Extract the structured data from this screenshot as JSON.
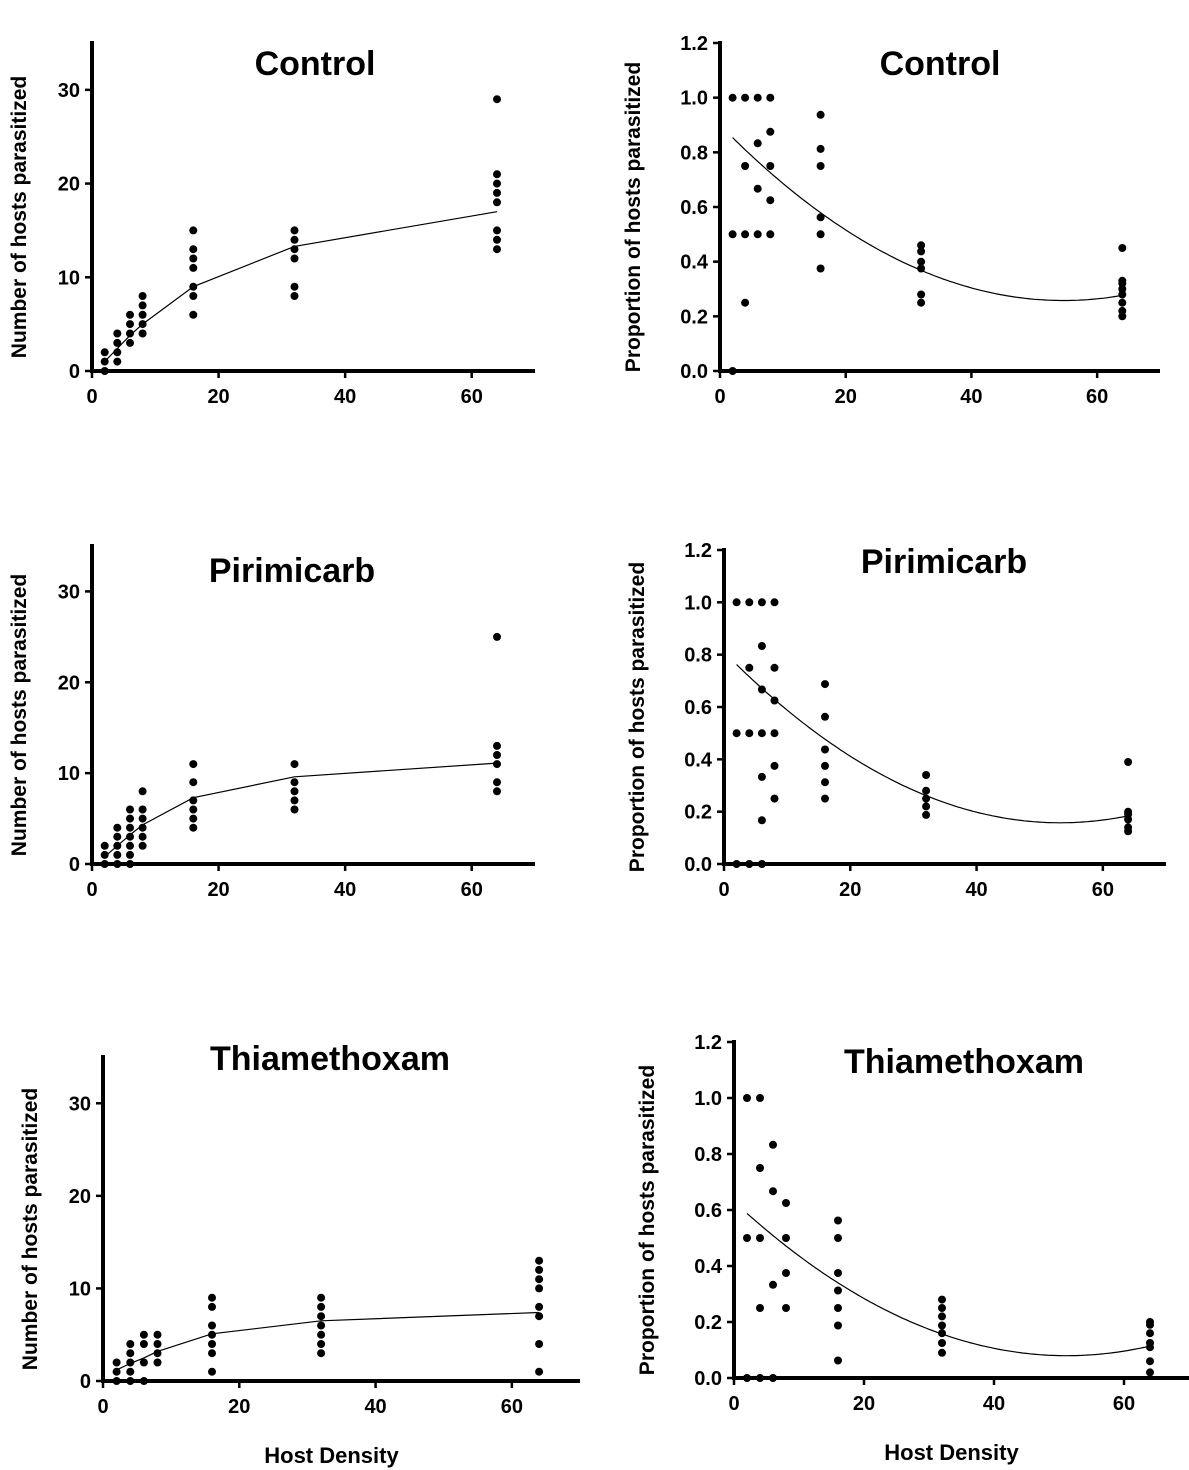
{
  "chart_data": [
    {
      "type": "scatter",
      "title": "Control",
      "xlabel": "",
      "ylabel": "Number of hosts parasitized",
      "xlim": [
        0,
        70
      ],
      "ylim": [
        0,
        35
      ],
      "xticks": [
        0,
        20,
        40,
        60
      ],
      "yticks": [
        0,
        10,
        20,
        30
      ],
      "points": [
        [
          2,
          0
        ],
        [
          2,
          1
        ],
        [
          2,
          2
        ],
        [
          4,
          1
        ],
        [
          4,
          2
        ],
        [
          4,
          3
        ],
        [
          4,
          4
        ],
        [
          6,
          3
        ],
        [
          6,
          4
        ],
        [
          6,
          5
        ],
        [
          6,
          6
        ],
        [
          8,
          4
        ],
        [
          8,
          5
        ],
        [
          8,
          6
        ],
        [
          8,
          7
        ],
        [
          8,
          8
        ],
        [
          16,
          6
        ],
        [
          16,
          8
        ],
        [
          16,
          9
        ],
        [
          16,
          11
        ],
        [
          16,
          12
        ],
        [
          16,
          13
        ],
        [
          16,
          15
        ],
        [
          32,
          8
        ],
        [
          32,
          9
        ],
        [
          32,
          12
        ],
        [
          32,
          13
        ],
        [
          32,
          14
        ],
        [
          32,
          15
        ],
        [
          64,
          13
        ],
        [
          64,
          14
        ],
        [
          64,
          15
        ],
        [
          64,
          18
        ],
        [
          64,
          19
        ],
        [
          64,
          20
        ],
        [
          64,
          21
        ],
        [
          64,
          29
        ]
      ],
      "fit": [
        [
          2,
          1
        ],
        [
          4,
          2.4
        ],
        [
          6,
          3.8
        ],
        [
          8,
          5
        ],
        [
          16,
          9
        ],
        [
          32,
          13.3
        ],
        [
          64,
          17
        ]
      ]
    },
    {
      "type": "scatter",
      "title": "Control",
      "xlabel": "",
      "ylabel": "Proportion of hosts parasitized",
      "xlim": [
        0,
        70
      ],
      "ylim": [
        0,
        1.2
      ],
      "xticks": [
        0,
        20,
        40,
        60
      ],
      "yticks": [
        "0.0",
        "0.2",
        "0.4",
        "0.6",
        "0.8",
        "1.0",
        "1.2"
      ],
      "points": [
        [
          2,
          0
        ],
        [
          2,
          0.5
        ],
        [
          2,
          1.0
        ],
        [
          4,
          0.25
        ],
        [
          4,
          0.5
        ],
        [
          4,
          0.75
        ],
        [
          4,
          1.0
        ],
        [
          6,
          0.5
        ],
        [
          6,
          0.667
        ],
        [
          6,
          0.833
        ],
        [
          6,
          1.0
        ],
        [
          8,
          0.5
        ],
        [
          8,
          0.625
        ],
        [
          8,
          0.75
        ],
        [
          8,
          0.875
        ],
        [
          8,
          1.0
        ],
        [
          16,
          0.375
        ],
        [
          16,
          0.5
        ],
        [
          16,
          0.5625
        ],
        [
          16,
          0.75
        ],
        [
          16,
          0.8125
        ],
        [
          16,
          0.9375
        ],
        [
          32,
          0.25
        ],
        [
          32,
          0.28
        ],
        [
          32,
          0.375
        ],
        [
          32,
          0.4
        ],
        [
          32,
          0.4375
        ],
        [
          32,
          0.46
        ],
        [
          64,
          0.2
        ],
        [
          64,
          0.22
        ],
        [
          64,
          0.25
        ],
        [
          64,
          0.28
        ],
        [
          64,
          0.3
        ],
        [
          64,
          0.32
        ],
        [
          64,
          0.33
        ],
        [
          64,
          0.45
        ]
      ],
      "poly": [
        0.9,
        -0.0235,
        0.000215
      ]
    },
    {
      "type": "scatter",
      "title": "Pirimicarb",
      "xlabel": "",
      "ylabel": "Number of hosts parasitized",
      "xlim": [
        0,
        70
      ],
      "ylim": [
        0,
        35
      ],
      "xticks": [
        0,
        20,
        40,
        60
      ],
      "yticks": [
        0,
        10,
        20,
        30
      ],
      "points": [
        [
          2,
          0
        ],
        [
          2,
          1
        ],
        [
          2,
          2
        ],
        [
          4,
          0
        ],
        [
          4,
          1
        ],
        [
          4,
          2
        ],
        [
          4,
          3
        ],
        [
          4,
          4
        ],
        [
          6,
          0
        ],
        [
          6,
          1
        ],
        [
          6,
          2
        ],
        [
          6,
          3
        ],
        [
          6,
          4
        ],
        [
          6,
          5
        ],
        [
          6,
          6
        ],
        [
          8,
          2
        ],
        [
          8,
          3
        ],
        [
          8,
          4
        ],
        [
          8,
          5
        ],
        [
          8,
          6
        ],
        [
          8,
          8
        ],
        [
          16,
          4
        ],
        [
          16,
          5
        ],
        [
          16,
          6
        ],
        [
          16,
          7
        ],
        [
          16,
          9
        ],
        [
          16,
          11
        ],
        [
          32,
          6
        ],
        [
          32,
          7
        ],
        [
          32,
          8
        ],
        [
          32,
          9
        ],
        [
          32,
          11
        ],
        [
          64,
          8
        ],
        [
          64,
          9
        ],
        [
          64,
          11
        ],
        [
          64,
          12
        ],
        [
          64,
          13
        ],
        [
          64,
          25
        ]
      ],
      "fit": [
        [
          2,
          0.8
        ],
        [
          4,
          2
        ],
        [
          6,
          3.2
        ],
        [
          8,
          4.3
        ],
        [
          16,
          7.3
        ],
        [
          32,
          9.6
        ],
        [
          64,
          11.1
        ]
      ]
    },
    {
      "type": "scatter",
      "title": "Pirimicarb",
      "xlabel": "",
      "ylabel": "Proportion of hosts parasitized",
      "xlim": [
        0,
        70
      ],
      "ylim": [
        0,
        1.2
      ],
      "xticks": [
        0,
        20,
        40,
        60
      ],
      "yticks": [
        "0.0",
        "0.2",
        "0.4",
        "0.6",
        "0.8",
        "1.0",
        "1.2"
      ],
      "points": [
        [
          2,
          0
        ],
        [
          2,
          0.5
        ],
        [
          2,
          1.0
        ],
        [
          4,
          0
        ],
        [
          4,
          0.5
        ],
        [
          4,
          0.75
        ],
        [
          4,
          1.0
        ],
        [
          6,
          0
        ],
        [
          6,
          0.167
        ],
        [
          6,
          0.333
        ],
        [
          6,
          0.5
        ],
        [
          6,
          0.667
        ],
        [
          6,
          0.833
        ],
        [
          6,
          1.0
        ],
        [
          8,
          0.25
        ],
        [
          8,
          0.375
        ],
        [
          8,
          0.5
        ],
        [
          8,
          0.625
        ],
        [
          8,
          0.75
        ],
        [
          8,
          1.0
        ],
        [
          16,
          0.25
        ],
        [
          16,
          0.3125
        ],
        [
          16,
          0.375
        ],
        [
          16,
          0.4375
        ],
        [
          16,
          0.5625
        ],
        [
          16,
          0.6875
        ],
        [
          32,
          0.1875
        ],
        [
          32,
          0.22
        ],
        [
          32,
          0.25
        ],
        [
          32,
          0.28
        ],
        [
          32,
          0.34
        ],
        [
          64,
          0.125
        ],
        [
          64,
          0.14
        ],
        [
          64,
          0.17
        ],
        [
          64,
          0.19
        ],
        [
          64,
          0.2
        ],
        [
          64,
          0.39
        ]
      ],
      "poly": [
        0.81,
        -0.0245,
        0.00023
      ]
    },
    {
      "type": "scatter",
      "title": "Thiamethoxam",
      "xlabel": "Host Density",
      "ylabel": "Number of hosts parasitized",
      "xlim": [
        0,
        70
      ],
      "ylim": [
        0,
        35
      ],
      "xticks": [
        0,
        20,
        40,
        60
      ],
      "yticks": [
        0,
        10,
        20,
        30
      ],
      "points": [
        [
          2,
          0
        ],
        [
          2,
          1
        ],
        [
          2,
          2
        ],
        [
          4,
          0
        ],
        [
          4,
          1
        ],
        [
          4,
          2
        ],
        [
          4,
          3
        ],
        [
          4,
          4
        ],
        [
          6,
          0
        ],
        [
          6,
          2
        ],
        [
          6,
          4
        ],
        [
          6,
          5
        ],
        [
          8,
          2
        ],
        [
          8,
          3
        ],
        [
          8,
          4
        ],
        [
          8,
          5
        ],
        [
          16,
          1
        ],
        [
          16,
          3
        ],
        [
          16,
          4
        ],
        [
          16,
          5
        ],
        [
          16,
          6
        ],
        [
          16,
          8
        ],
        [
          16,
          9
        ],
        [
          32,
          3
        ],
        [
          32,
          4
        ],
        [
          32,
          5
        ],
        [
          32,
          6
        ],
        [
          32,
          7
        ],
        [
          32,
          8
        ],
        [
          32,
          9
        ],
        [
          64,
          1
        ],
        [
          64,
          4
        ],
        [
          64,
          7
        ],
        [
          64,
          8
        ],
        [
          64,
          10
        ],
        [
          64,
          11
        ],
        [
          64,
          12
        ],
        [
          64,
          13
        ]
      ],
      "fit": [
        [
          2,
          1.2
        ],
        [
          4,
          1.9
        ],
        [
          6,
          2.5
        ],
        [
          8,
          3.2
        ],
        [
          16,
          5.1
        ],
        [
          32,
          6.5
        ],
        [
          64,
          7.4
        ]
      ]
    },
    {
      "type": "scatter",
      "title": "Thiamethoxam",
      "xlabel": "Host Density",
      "ylabel": "Proportion of hosts parasitized",
      "xlim": [
        0,
        70
      ],
      "ylim": [
        0,
        1.2
      ],
      "xticks": [
        0,
        20,
        40,
        60
      ],
      "yticks": [
        "0.0",
        "0.2",
        "0.4",
        "0.6",
        "0.8",
        "1.0",
        "1.2"
      ],
      "points": [
        [
          2,
          0
        ],
        [
          2,
          0.5
        ],
        [
          2,
          1.0
        ],
        [
          4,
          0
        ],
        [
          4,
          0.25
        ],
        [
          4,
          0.5
        ],
        [
          4,
          0.75
        ],
        [
          4,
          1.0
        ],
        [
          6,
          0
        ],
        [
          6,
          0.333
        ],
        [
          6,
          0.667
        ],
        [
          6,
          0.833
        ],
        [
          8,
          0.25
        ],
        [
          8,
          0.375
        ],
        [
          8,
          0.5
        ],
        [
          8,
          0.625
        ],
        [
          16,
          0.0625
        ],
        [
          16,
          0.1875
        ],
        [
          16,
          0.25
        ],
        [
          16,
          0.3125
        ],
        [
          16,
          0.375
        ],
        [
          16,
          0.5
        ],
        [
          16,
          0.5625
        ],
        [
          32,
          0.09
        ],
        [
          32,
          0.125
        ],
        [
          32,
          0.16
        ],
        [
          32,
          0.1875
        ],
        [
          32,
          0.22
        ],
        [
          32,
          0.25
        ],
        [
          32,
          0.28
        ],
        [
          64,
          0.02
        ],
        [
          64,
          0.06
        ],
        [
          64,
          0.11
        ],
        [
          64,
          0.125
        ],
        [
          64,
          0.16
        ],
        [
          64,
          0.19
        ],
        [
          64,
          0.2
        ]
      ],
      "poly": [
        0.63,
        -0.0215,
        0.00021
      ]
    }
  ]
}
